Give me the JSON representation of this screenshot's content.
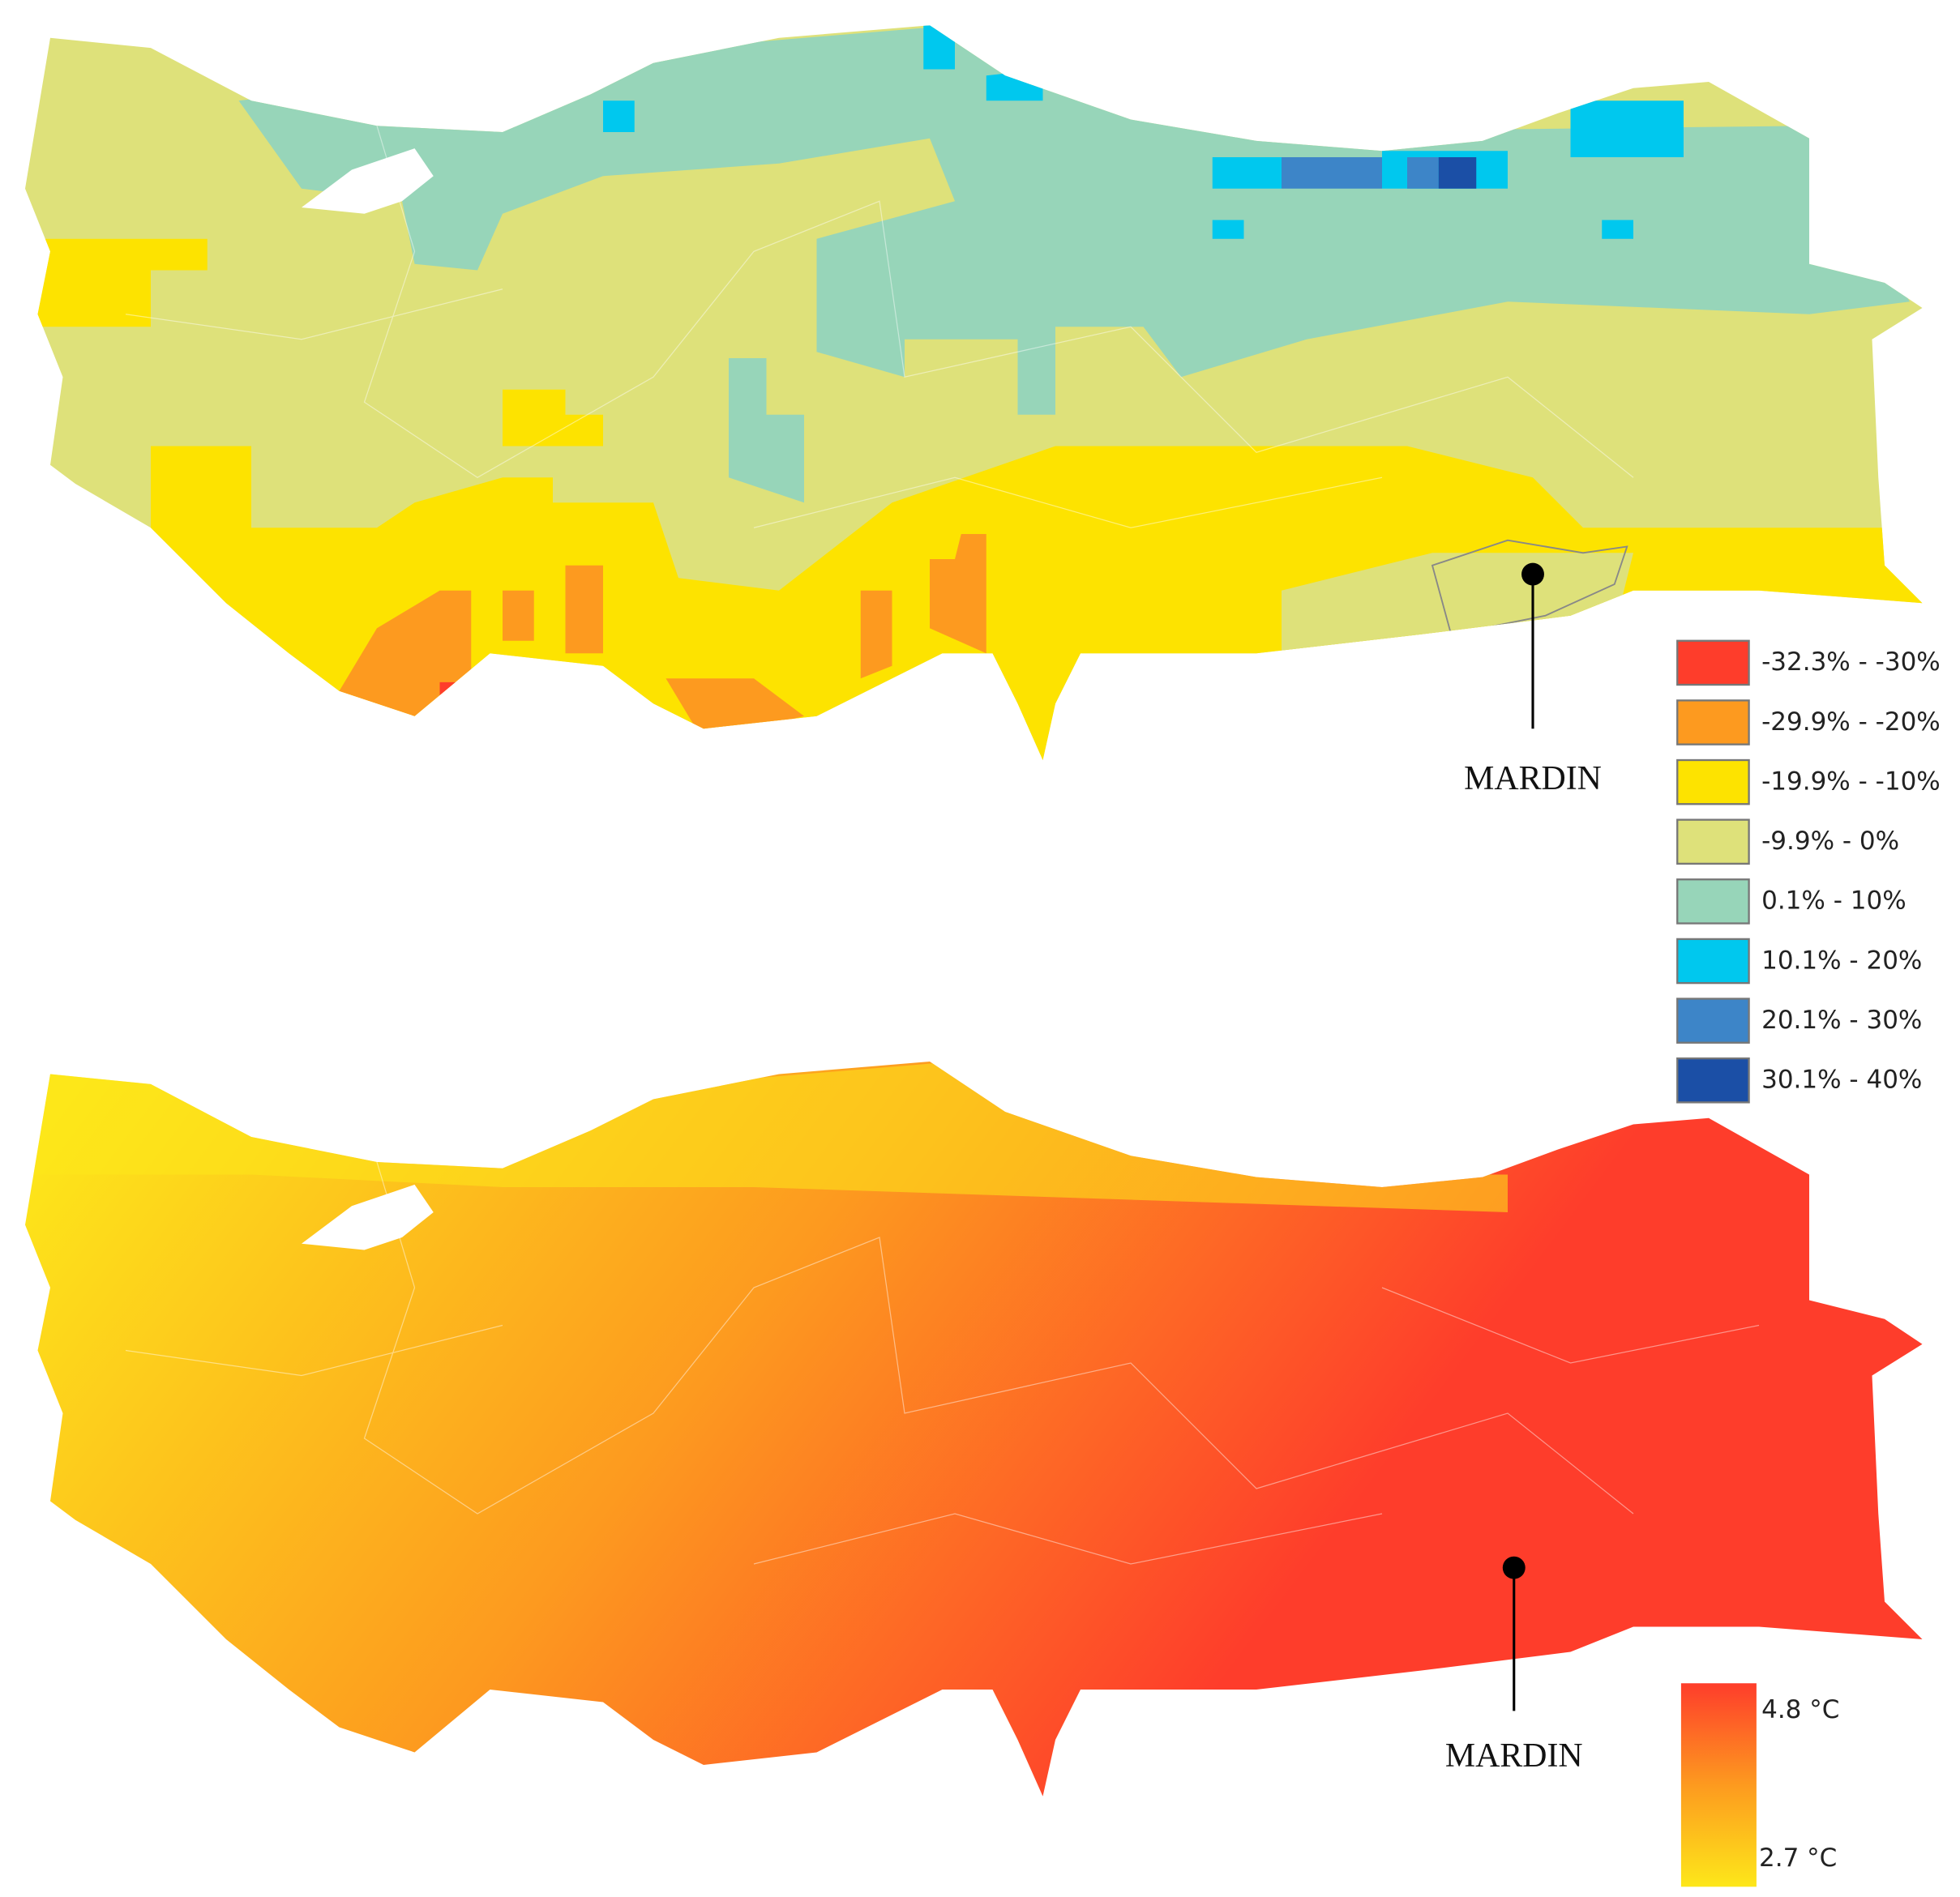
{
  "maps": [
    {
      "marker": {
        "label": "MARDIN"
      },
      "legend": {
        "items": [
          {
            "label": "-32.3% - -30%",
            "color": "#fe3d2b"
          },
          {
            "label": "-29.9% - -20%",
            "color": "#fd9a1f"
          },
          {
            "label": "-19.9% - -10%",
            "color": "#fde300"
          },
          {
            "label": "-9.9% - 0%",
            "color": "#dee17a"
          },
          {
            "label": "0.1% - 10%",
            "color": "#97d5b9"
          },
          {
            "label": "10.1% - 20%",
            "color": "#00c8ee"
          },
          {
            "label": "20.1% - 30%",
            "color": "#3d85c8"
          },
          {
            "label": "30.1% - 40%",
            "color": "#1b4fa6"
          }
        ]
      }
    },
    {
      "marker": {
        "label": "MARDIN"
      },
      "legend": {
        "high_label": "4.8 °C",
        "high_color": "#fe3d2b",
        "low_label": "2.7 °C",
        "low_color": "#fde71a"
      }
    }
  ]
}
